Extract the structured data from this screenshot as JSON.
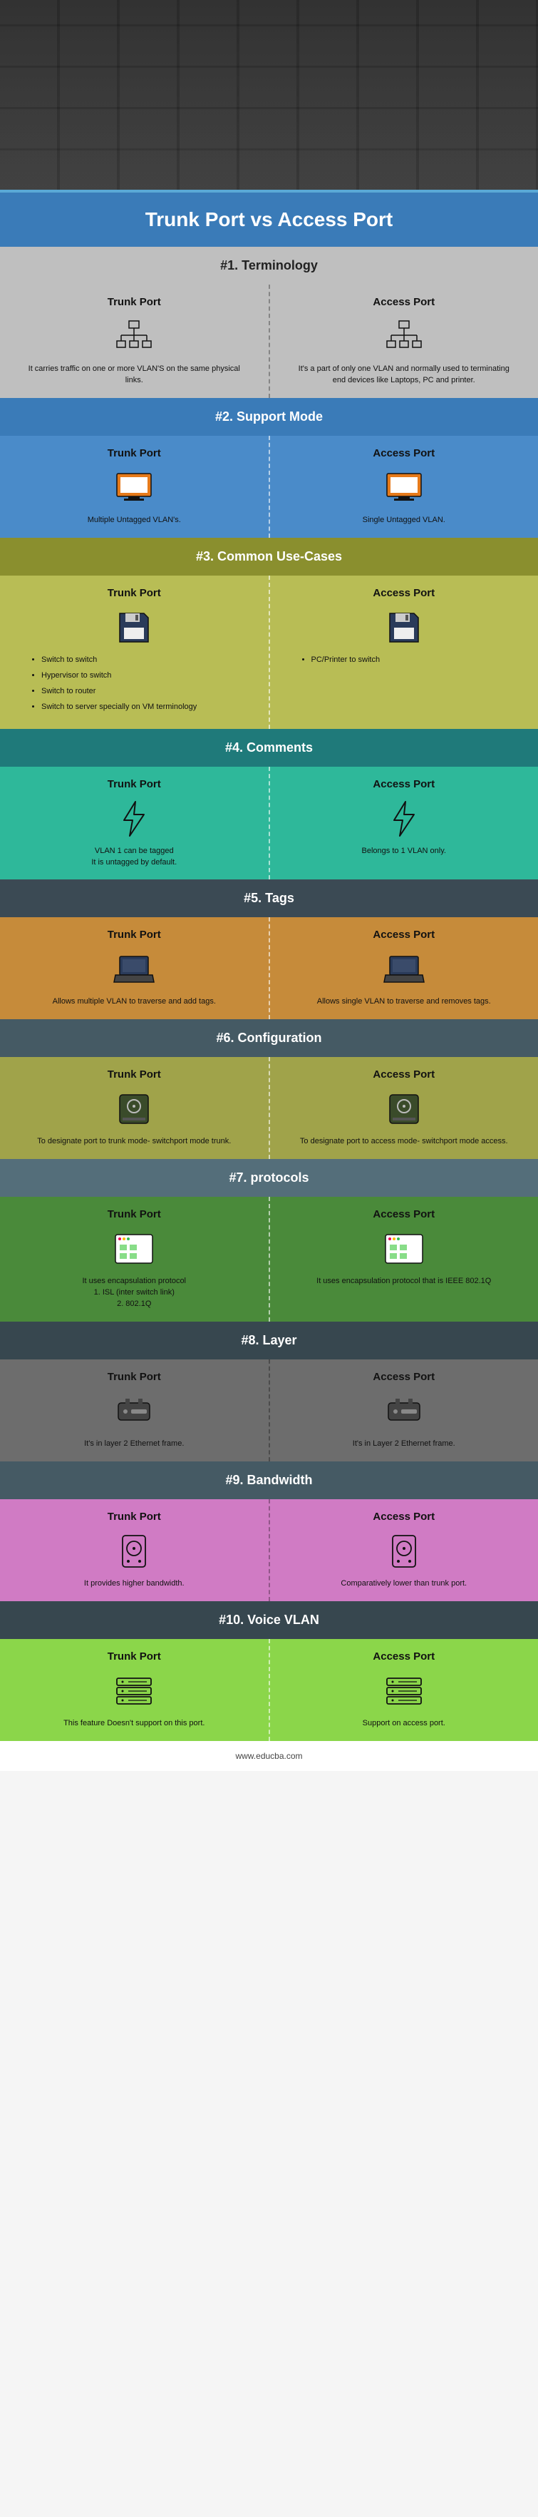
{
  "title": "Trunk Port vs Access Port",
  "footer": "www.educba.com",
  "left_title": "Trunk Port",
  "right_title": "Access Port",
  "colors": {
    "title_band": "#3a7bb8",
    "s1_header": "#bfbfbf",
    "s1_body": "#bfbfbf",
    "s2_header": "#3a7bb8",
    "s2_body": "#4a8bc9",
    "s3_header": "#8a8f2e",
    "s3_body": "#b8bd55",
    "s4_header": "#1f7a7a",
    "s4_body": "#2eb89a",
    "s5_header": "#3b4a54",
    "s5_body": "#c68b3a",
    "s6_header": "#455a64",
    "s6_body": "#a0a34a",
    "s7_header": "#546e7a",
    "s7_body": "#4a8a3a",
    "s8_header": "#37474f",
    "s8_body": "#6d6d6d",
    "s9_header": "#455a64",
    "s9_body": "#d07bc4",
    "s10_header": "#37474f",
    "s10_body": "#8bd64a"
  },
  "sections": [
    {
      "num": "#1.",
      "name": "Terminology",
      "left": "It carries traffic on one or more VLAN'S on the same physical links.",
      "right": "It's a part of only one VLAN and normally used to terminating end devices like Laptops, PC and printer."
    },
    {
      "num": "#2.",
      "name": "Support Mode",
      "left": "Multiple Untagged VLAN's.",
      "right": "Single Untagged VLAN."
    },
    {
      "num": "#3.",
      "name": "Common Use-Cases",
      "left_list": [
        "Switch to switch",
        "Hypervisor to switch",
        "Switch to router",
        "Switch to server specially on VM terminology"
      ],
      "right_list": [
        "PC/Printer to switch"
      ]
    },
    {
      "num": "#4.",
      "name": "Comments",
      "left": "VLAN 1 can be tagged\nIt is untagged by default.",
      "right": "Belongs to 1 VLAN only."
    },
    {
      "num": "#5.",
      "name": "Tags",
      "left": "Allows multiple VLAN to traverse and add tags.",
      "right": "Allows single VLAN to traverse and removes tags."
    },
    {
      "num": "#6.",
      "name": "Configuration",
      "left": "To designate port to trunk mode- switchport mode trunk.",
      "right": "To designate port to access mode- switchport mode access."
    },
    {
      "num": "#7.",
      "name": "protocols",
      "left": "It uses encapsulation protocol\n1. ISL (inter switch link)\n2. 802.1Q",
      "right": "It uses encapsulation protocol that is IEEE 802.1Q"
    },
    {
      "num": "#8.",
      "name": "Layer",
      "left": "It's in layer 2 Ethernet frame.",
      "right": "It's in Layer 2 Ethernet frame."
    },
    {
      "num": "#9.",
      "name": "Bandwidth",
      "left": "It provides higher bandwidth.",
      "right": "Comparatively lower than trunk port."
    },
    {
      "num": "#10.",
      "name": "Voice VLAN",
      "left": "This feature Doesn't support on this port.",
      "right": "Support on access port."
    }
  ],
  "icons": {
    "s1": "network-tree",
    "s2": "monitor-orange",
    "s3": "floppy",
    "s4": "bolt",
    "s5": "laptop",
    "s6": "disc",
    "s7": "window-grid",
    "s8": "hdd",
    "s9": "hdd-tall",
    "s10": "rack"
  }
}
